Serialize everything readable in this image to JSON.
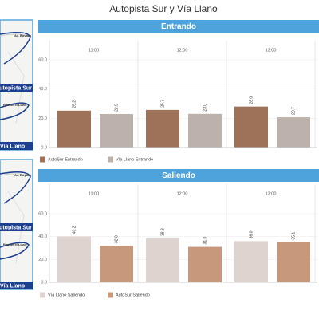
{
  "dashboard_title": "Autopista Sur y Vía Llano",
  "maps": [
    {
      "place_labels": [
        "Av. Boyaca",
        "Puente el Llano"
      ],
      "road_label": "Autopista Sur",
      "footer": "Vía Llano"
    },
    {
      "place_labels": [
        "Av. Boyaca",
        "Puente el Llano"
      ],
      "road_label": "Autopista Sur",
      "footer": "Vía Llano"
    }
  ],
  "chart_data": [
    {
      "type": "bar",
      "title": "Entrando",
      "categories": [
        "11:00",
        "12:00",
        "13:00"
      ],
      "series": [
        {
          "name": "AutoSur Entrando",
          "color": "#9e7259",
          "values": [
            25.2,
            25.7,
            28.0
          ],
          "value_labels": [
            "25.2",
            "25.7",
            "28.0"
          ]
        },
        {
          "name": "Vía Llano Entrando",
          "color": "#bcb2ab",
          "values": [
            22.9,
            23.0,
            20.7
          ],
          "value_labels": [
            "22.9",
            "23.0",
            "20.7"
          ]
        }
      ],
      "ylim": [
        0,
        60
      ],
      "yticks": [
        {
          "value": 0,
          "label": "0.0"
        },
        {
          "value": 20,
          "label": "20.0"
        },
        {
          "value": 40,
          "label": "40.0"
        },
        {
          "value": 60,
          "label": "60.0"
        }
      ]
    },
    {
      "type": "bar",
      "title": "Saliendo",
      "categories": [
        "11:00",
        "12:00",
        "13:00"
      ],
      "series": [
        {
          "name": "Vía Llano Saliendo",
          "color": "#ded3ce",
          "values": [
            40.2,
            38.3,
            36.0
          ],
          "value_labels": [
            "40.2",
            "38.3",
            "36.0"
          ]
        },
        {
          "name": "AutoSur Saliendo",
          "color": "#c7987c",
          "values": [
            32.0,
            31.0,
            35.1
          ],
          "value_labels": [
            "32.0",
            "31.0",
            "35.1"
          ]
        }
      ],
      "ylim": [
        0,
        60
      ],
      "yticks": [
        {
          "value": 0,
          "label": "0.0"
        },
        {
          "value": 20,
          "label": "20.0"
        },
        {
          "value": 40,
          "label": "40.0"
        },
        {
          "value": 60,
          "label": "60.0"
        }
      ]
    }
  ]
}
